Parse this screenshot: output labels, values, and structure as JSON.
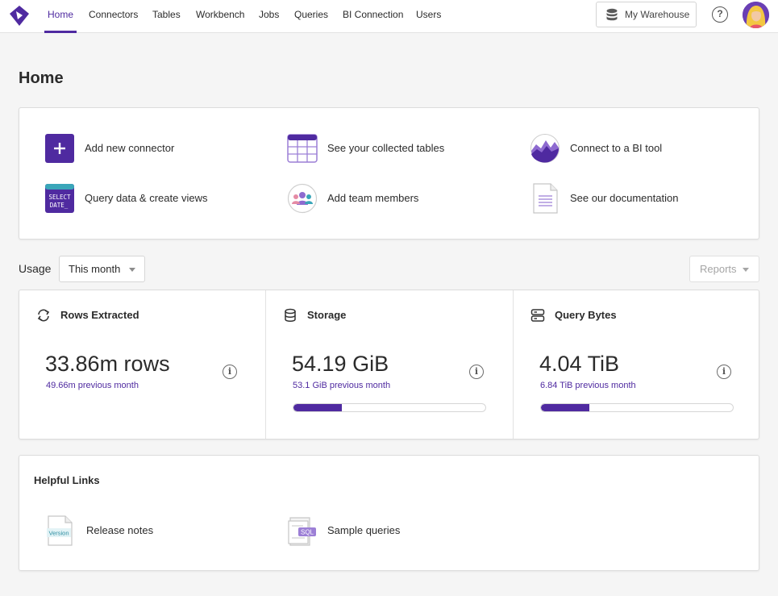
{
  "nav": {
    "items": [
      "Home",
      "Connectors",
      "Tables",
      "Workbench",
      "Jobs",
      "Queries",
      "BI Connection",
      "Users"
    ],
    "active": "Home",
    "warehouse_label": "My Warehouse",
    "help_symbol": "?"
  },
  "page": {
    "title": "Home"
  },
  "quick_actions": [
    {
      "label": "Add new connector",
      "icon": "plus-icon"
    },
    {
      "label": "See your collected tables",
      "icon": "table-grid-icon"
    },
    {
      "label": "Connect to a BI tool",
      "icon": "chart-wave-icon"
    },
    {
      "label": "Query data & create views",
      "icon": "select-date-icon",
      "icon_text": [
        "SELECT",
        "DATE_"
      ]
    },
    {
      "label": "Add team members",
      "icon": "team-icon"
    },
    {
      "label": "See our documentation",
      "icon": "document-icon"
    }
  ],
  "usage": {
    "label": "Usage",
    "period": "This month",
    "reports_label": "Reports",
    "metrics": [
      {
        "title": "Rows Extracted",
        "icon": "refresh-icon",
        "value": "33.86m rows",
        "previous": "49.66m previous month",
        "progress": null
      },
      {
        "title": "Storage",
        "icon": "database-icon",
        "value": "54.19 GiB",
        "previous": "53.1 GiB previous month",
        "progress": 0.25
      },
      {
        "title": "Query Bytes",
        "icon": "server-icon",
        "value": "4.04 TiB",
        "previous": "6.84 TiB previous month",
        "progress": 0.25
      }
    ],
    "info_symbol": "i"
  },
  "helpful_links": {
    "title": "Helpful Links",
    "items": [
      {
        "label": "Release notes",
        "icon": "version-doc-icon",
        "icon_text": "Version"
      },
      {
        "label": "Sample queries",
        "icon": "sql-doc-icon",
        "icon_text": "SQL"
      }
    ]
  },
  "colors": {
    "accent": "#4f2aa0",
    "teal": "#3aa6b9",
    "background": "#f5f5f5"
  }
}
